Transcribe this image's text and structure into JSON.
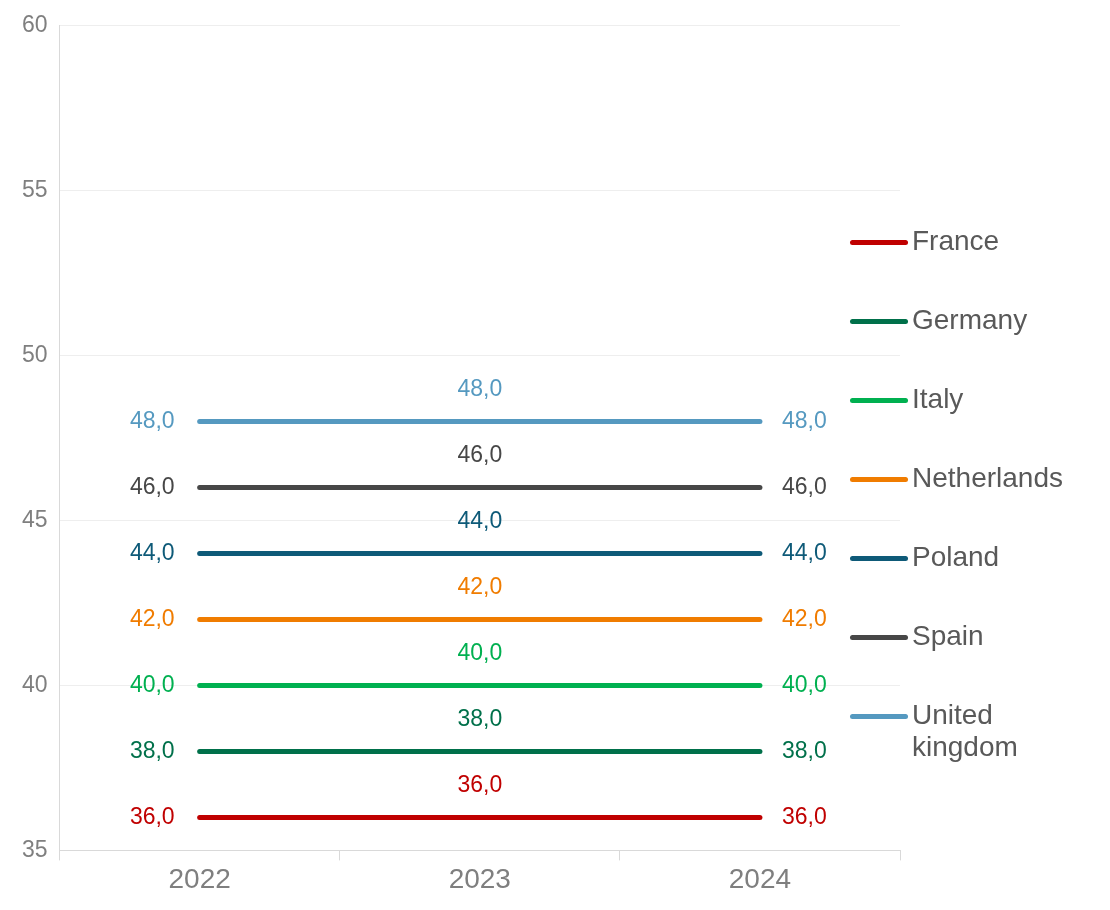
{
  "chart_data": {
    "type": "line",
    "categories": [
      "2022",
      "2023",
      "2024"
    ],
    "series": [
      {
        "name": "France",
        "color": "#c00000",
        "values": [
          36,
          36,
          36
        ],
        "value_labels": [
          "36,0",
          "36,0",
          "36,0"
        ]
      },
      {
        "name": "Germany",
        "color": "#00704a",
        "values": [
          38,
          38,
          38
        ],
        "value_labels": [
          "38,0",
          "38,0",
          "38,0"
        ]
      },
      {
        "name": "Italy",
        "color": "#00b050",
        "values": [
          40,
          40,
          40
        ],
        "value_labels": [
          "40,0",
          "40,0",
          "40,0"
        ]
      },
      {
        "name": "Netherlands",
        "color": "#f07c00",
        "values": [
          42,
          42,
          42
        ],
        "value_labels": [
          "42,0",
          "42,0",
          "42,0"
        ]
      },
      {
        "name": "Poland",
        "color": "#0e5a78",
        "values": [
          44,
          44,
          44
        ],
        "value_labels": [
          "44,0",
          "44,0",
          "44,0"
        ]
      },
      {
        "name": "Spain",
        "color": "#474747",
        "values": [
          46,
          46,
          46
        ],
        "value_labels": [
          "46,0",
          "46,0",
          "46,0"
        ]
      },
      {
        "name": "United kingdom",
        "color": "#5599c0",
        "values": [
          48,
          48,
          48
        ],
        "value_labels": [
          "48,0",
          "48,0",
          "48,0"
        ]
      }
    ],
    "ylim": [
      35,
      60
    ],
    "yticks": [
      35,
      40,
      45,
      50,
      55,
      60
    ],
    "grid": "y",
    "legend": "right",
    "marker": "none",
    "line_style": "solid"
  }
}
